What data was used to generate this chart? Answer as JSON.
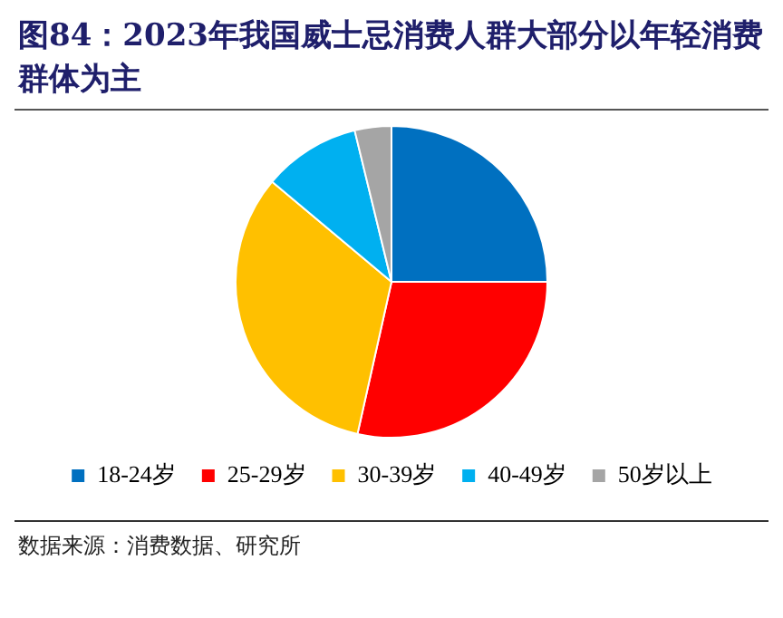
{
  "chart_data": {
    "type": "pie",
    "title": "图84：2023年我国威士忌消费人群大部分以年轻消费群体为主",
    "categories": [
      "18-24岁",
      "25-29岁",
      "30-39岁",
      "40-49岁",
      "50岁以上"
    ],
    "values": [
      25,
      28.5,
      32.6,
      10.1,
      3.8
    ],
    "colors": [
      "#0070c0",
      "#ff0000",
      "#ffc000",
      "#00b0f0",
      "#a5a5a5"
    ],
    "legend": "bottom",
    "annotations": [
      "数据来源：消费数据、研究所"
    ]
  }
}
